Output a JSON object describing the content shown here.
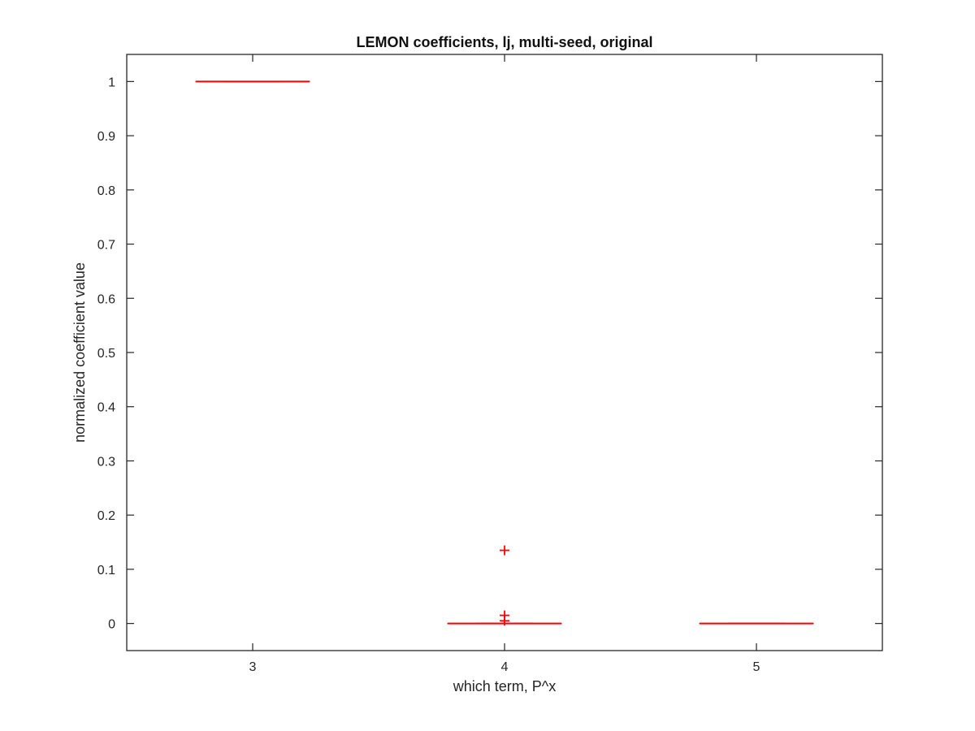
{
  "chart_data": {
    "type": "box",
    "title": "LEMON coefficients, lj, multi-seed, original",
    "xlabel": "which term, P^x",
    "ylabel": "normalized coefficient value",
    "categories": [
      "3",
      "4",
      "5"
    ],
    "xlim": [
      2.5,
      5.5
    ],
    "ylim": [
      -0.05,
      1.05
    ],
    "yticks": [
      0,
      0.1,
      0.2,
      0.3,
      0.4,
      0.5,
      0.6,
      0.7,
      0.8,
      0.9,
      1
    ],
    "ytick_labels": [
      "0",
      "0.1",
      "0.2",
      "0.3",
      "0.4",
      "0.5",
      "0.6",
      "0.7",
      "0.8",
      "0.9",
      "1"
    ],
    "grid": false,
    "color": "#ff0000",
    "boxes": [
      {
        "x": 3,
        "median": 1,
        "q1": 1,
        "q3": 1,
        "whisker_low": 1,
        "whisker_high": 1,
        "outliers": []
      },
      {
        "x": 4,
        "median": 0,
        "q1": 0,
        "q3": 0,
        "whisker_low": 0,
        "whisker_high": 0,
        "outliers": [
          0.135,
          0.015,
          0.005
        ]
      },
      {
        "x": 5,
        "median": 0,
        "q1": 0,
        "q3": 0,
        "whisker_low": 0,
        "whisker_high": 0,
        "outliers": []
      }
    ]
  }
}
